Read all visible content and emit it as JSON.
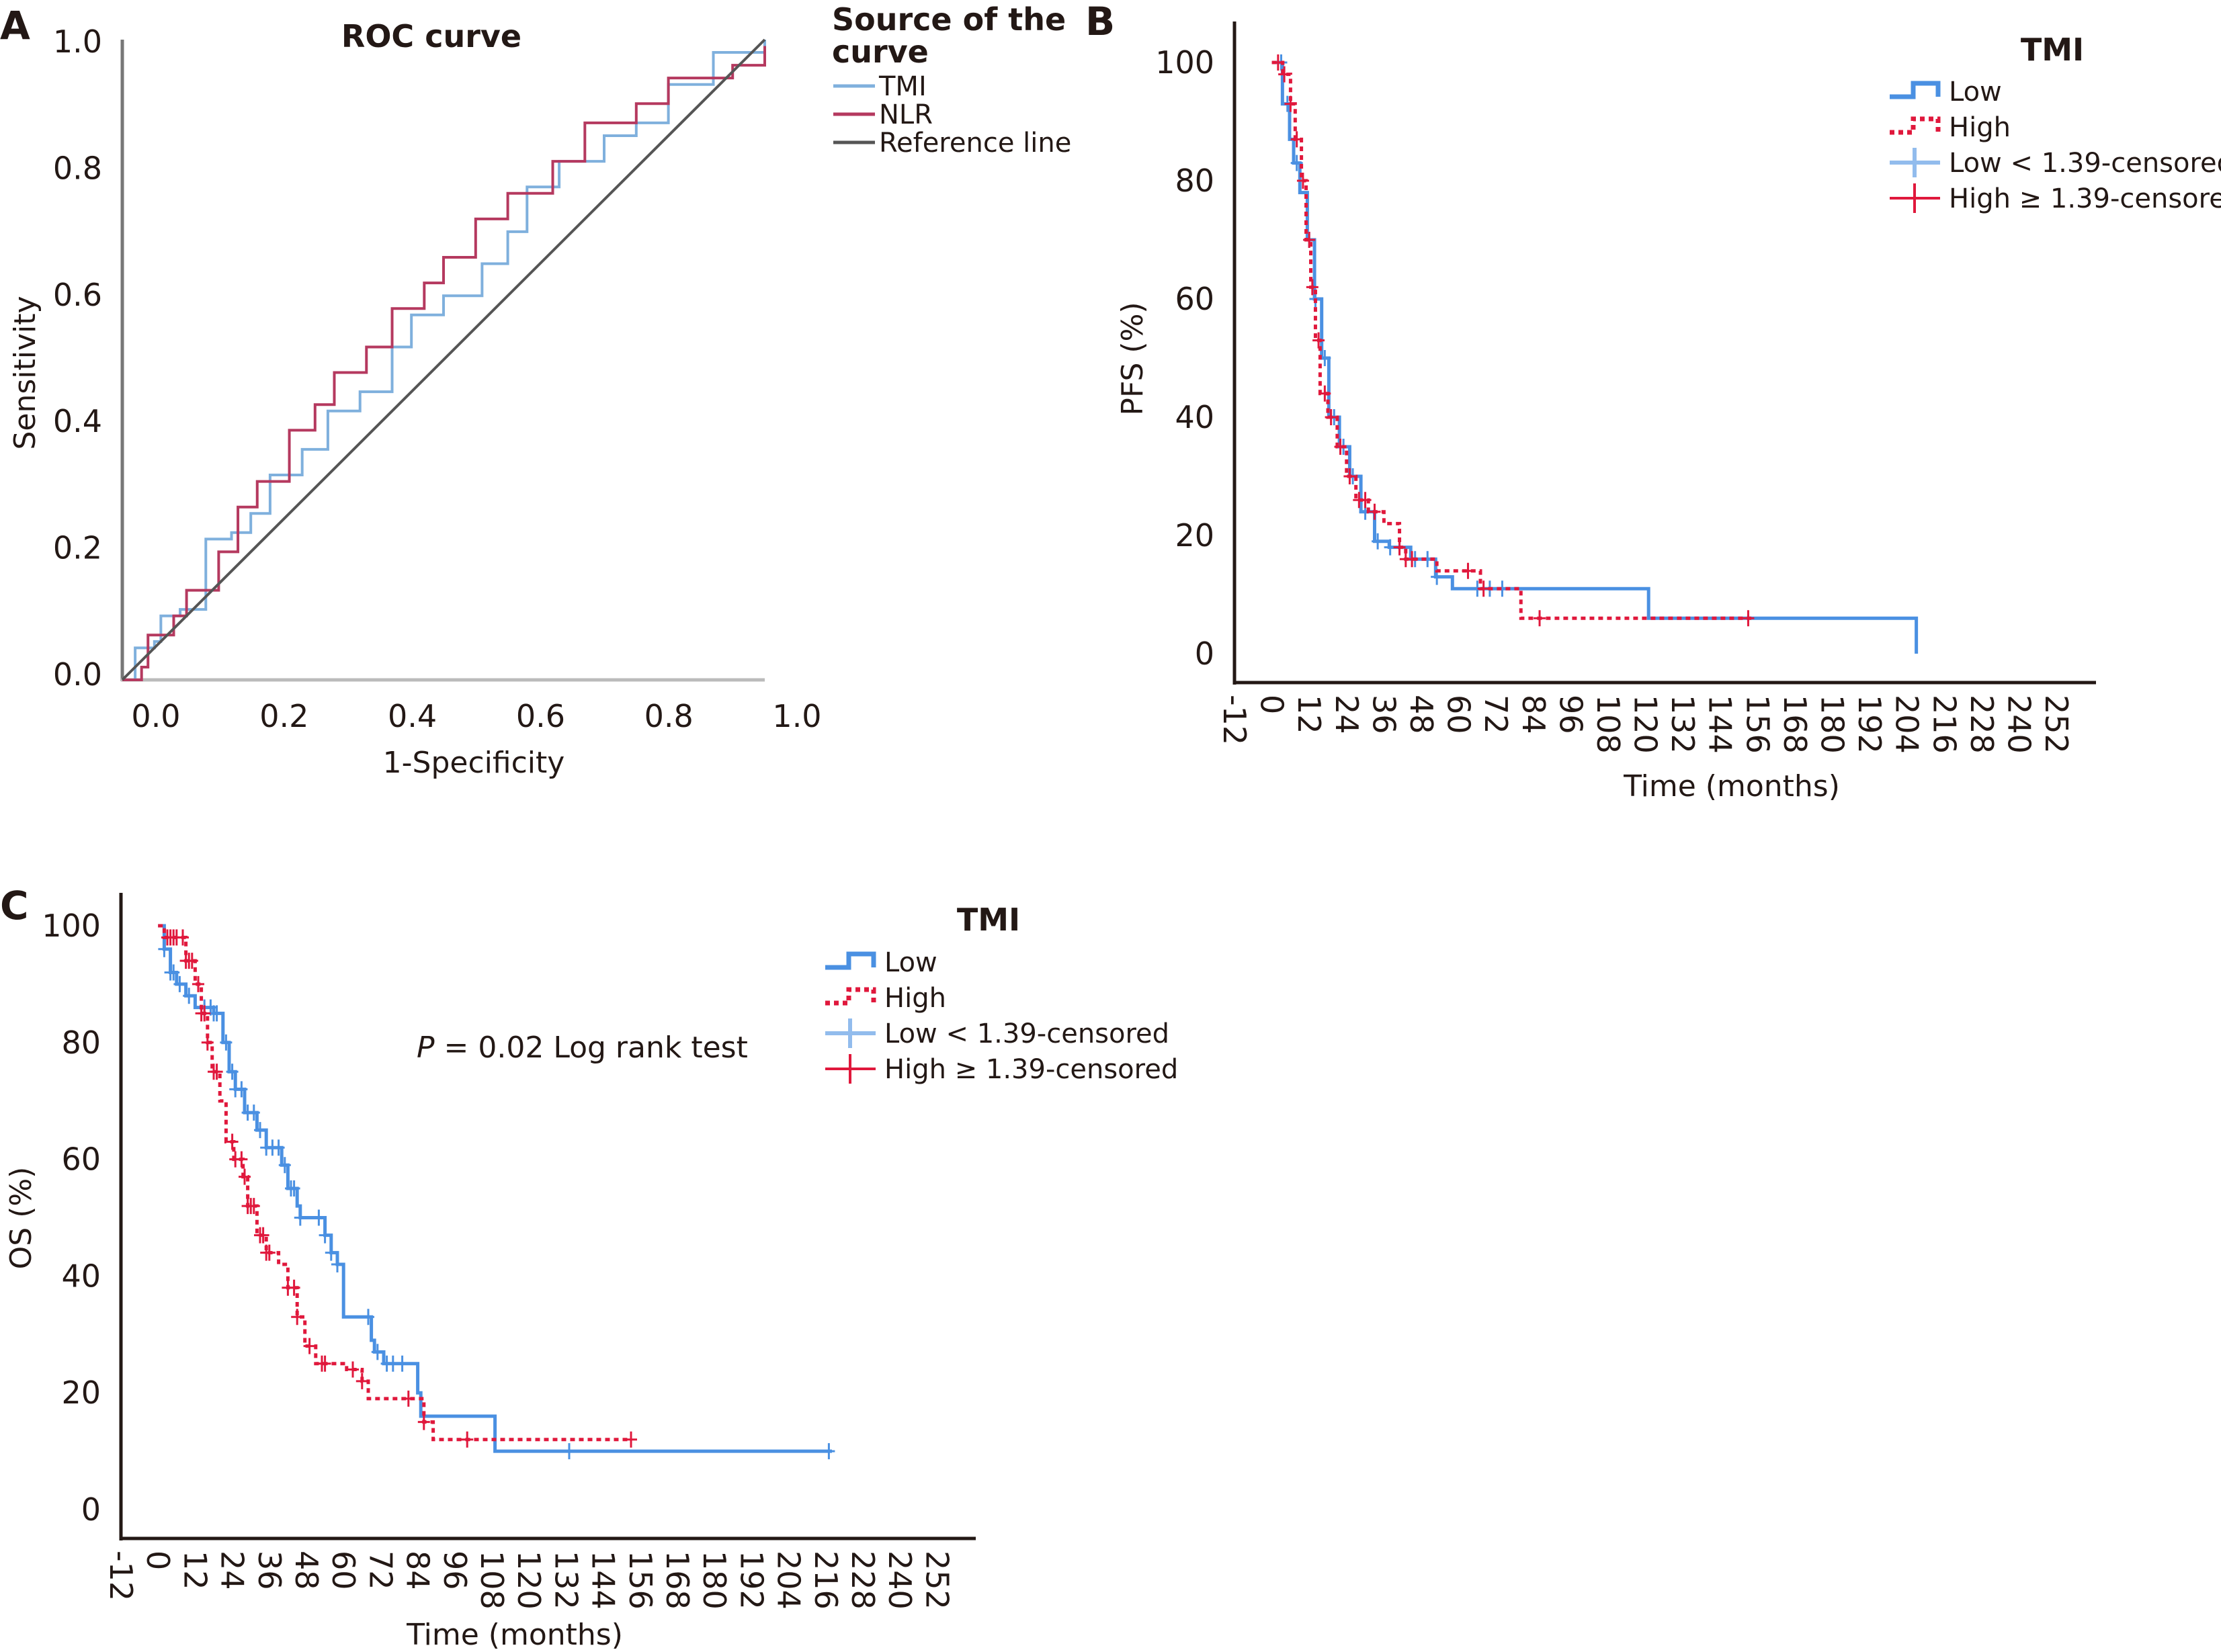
{
  "panels": {
    "a": "A",
    "b": "B",
    "c": "C"
  },
  "chart_data": [
    {
      "type": "line",
      "panel": "A",
      "title": "ROC curve",
      "xlabel": "1-Specificity",
      "ylabel": "Sensitivity",
      "xlim": [
        0,
        1
      ],
      "ylim": [
        0,
        1
      ],
      "xticks": [
        "0.0",
        "0.2",
        "0.4",
        "0.6",
        "0.8",
        "1.0"
      ],
      "yticks": [
        "0.0",
        "0.2",
        "0.4",
        "0.6",
        "0.8",
        "1.0"
      ],
      "grid": false,
      "legend_title": "Source of the curve",
      "legend_title_lines": [
        "Source of the",
        "curve"
      ],
      "legend_position": "right",
      "series": [
        {
          "name": "TMI",
          "color": "#7fb0dd",
          "step": true,
          "x": [
            0,
            0.02,
            0.05,
            0.06,
            0.09,
            0.13,
            0.17,
            0.2,
            0.23,
            0.28,
            0.32,
            0.37,
            0.42,
            0.45,
            0.5,
            0.56,
            0.6,
            0.63,
            0.68,
            0.75,
            0.8,
            0.85,
            0.92,
            1
          ],
          "y": [
            0,
            0.05,
            0.06,
            0.1,
            0.11,
            0.22,
            0.23,
            0.26,
            0.32,
            0.36,
            0.42,
            0.45,
            0.52,
            0.57,
            0.6,
            0.65,
            0.7,
            0.77,
            0.81,
            0.85,
            0.87,
            0.93,
            0.98,
            1
          ]
        },
        {
          "name": "NLR",
          "color": "#b5395f",
          "step": true,
          "x": [
            0,
            0.03,
            0.04,
            0.08,
            0.1,
            0.15,
            0.18,
            0.21,
            0.26,
            0.3,
            0.33,
            0.38,
            0.42,
            0.47,
            0.5,
            0.55,
            0.6,
            0.67,
            0.72,
            0.8,
            0.85,
            0.95,
            1
          ],
          "y": [
            0,
            0.02,
            0.07,
            0.1,
            0.14,
            0.2,
            0.27,
            0.31,
            0.39,
            0.43,
            0.48,
            0.52,
            0.58,
            0.62,
            0.66,
            0.72,
            0.76,
            0.81,
            0.87,
            0.9,
            0.94,
            0.96,
            0.99
          ]
        },
        {
          "name": "Reference line",
          "color": "#555555",
          "step": false,
          "x": [
            0,
            1
          ],
          "y": [
            0,
            1
          ]
        }
      ]
    },
    {
      "type": "line",
      "panel": "B",
      "title": "",
      "xlabel": "Time (months)",
      "ylabel": "PFS (%)",
      "xlim": [
        -12,
        264
      ],
      "ylim": [
        0,
        100
      ],
      "xticks": [
        "-12",
        "0",
        "12",
        "24",
        "36",
        "48",
        "60",
        "72",
        "84",
        "96",
        "108",
        "120",
        "132",
        "144",
        "156",
        "168",
        "180",
        "192",
        "204",
        "216",
        "228",
        "240",
        "252"
      ],
      "yticks": [
        "0",
        "20",
        "40",
        "60",
        "80",
        "100"
      ],
      "grid": false,
      "legend_title": "TMI",
      "legend_position": "top-right",
      "legend": [
        "Low",
        "High",
        "Low < 1.39-censored",
        "High ≥ 1.39-censored"
      ],
      "series": [
        {
          "name": "Low",
          "color": "#4a90e2",
          "dash": false,
          "x": [
            0,
            3.4,
            5.7,
            7,
            9,
            11.4,
            13.7,
            16,
            18.3,
            21.7,
            25,
            28.6,
            33,
            37.7,
            44.6,
            52.6,
            58,
            121,
            207
          ],
          "y": [
            100,
            93,
            87,
            83,
            78,
            70,
            60,
            50,
            40,
            35,
            30,
            24,
            19,
            18,
            16,
            13,
            11,
            6,
            0
          ],
          "censored": [
            3,
            5,
            8,
            12,
            14,
            17,
            20,
            23,
            26,
            30,
            34,
            38,
            41,
            46,
            50,
            53,
            66,
            70,
            74
          ]
        },
        {
          "name": "High",
          "color": "#e0183c",
          "dash": true,
          "x": [
            0,
            3.5,
            6,
            7.5,
            9.5,
            11,
            12.5,
            14,
            15.5,
            18,
            21,
            24,
            27,
            31,
            36,
            41,
            43,
            53,
            67,
            80,
            154
          ],
          "y": [
            100,
            98,
            93,
            87,
            80,
            70,
            62,
            53,
            44,
            40,
            35,
            30,
            26,
            24,
            22,
            18,
            16,
            14,
            11,
            6,
            6
          ],
          "censored": [
            2,
            4,
            6,
            8,
            10,
            12,
            13,
            15,
            17,
            19,
            22,
            25,
            28,
            30,
            33,
            41,
            43,
            45,
            63,
            68,
            86,
            153
          ]
        }
      ]
    },
    {
      "type": "line",
      "panel": "C",
      "title": "",
      "annotation": {
        "italic": "P",
        "text": " = 0.02 Log rank test"
      },
      "xlabel": "Time (months)",
      "ylabel": "OS (%)",
      "xlim": [
        -12,
        264
      ],
      "ylim": [
        0,
        100
      ],
      "xticks": [
        "-12",
        "0",
        "12",
        "24",
        "36",
        "48",
        "60",
        "72",
        "84",
        "96",
        "108",
        "120",
        "132",
        "144",
        "156",
        "168",
        "180",
        "192",
        "204",
        "216",
        "228",
        "240",
        "252"
      ],
      "yticks": [
        "0",
        "20",
        "40",
        "60",
        "80",
        "100"
      ],
      "grid": false,
      "legend_title": "TMI",
      "legend_position": "top-right",
      "legend": [
        "Low",
        "High",
        "Low < 1.39-censored",
        "High ≥ 1.39-censored"
      ],
      "series": [
        {
          "name": "Low",
          "color": "#4a90e2",
          "dash": false,
          "x": [
            0,
            2,
            4,
            6,
            9,
            12,
            18,
            21,
            23,
            25,
            28,
            32,
            35,
            40,
            42,
            45,
            46,
            54,
            56,
            58,
            60,
            69,
            70,
            73,
            84,
            85,
            109,
            218
          ],
          "y": [
            100,
            96,
            92,
            90,
            88,
            86,
            85,
            80,
            75,
            72,
            68,
            65,
            62,
            59,
            55,
            52,
            50,
            47,
            44,
            42,
            33,
            29,
            27,
            25,
            20,
            16,
            10,
            10
          ],
          "censored": [
            2,
            4,
            5,
            7,
            10,
            15,
            17,
            18,
            19,
            22,
            24,
            25,
            27,
            29,
            31,
            33,
            35,
            37,
            39,
            41,
            43,
            44,
            46,
            52,
            54,
            56,
            58,
            68,
            71,
            74,
            76,
            79,
            133,
            217
          ]
        },
        {
          "name": "High",
          "color": "#e0183c",
          "dash": true,
          "x": [
            0,
            2,
            9,
            12,
            14,
            16,
            17.5,
            20,
            22,
            24.5,
            27.5,
            29,
            32,
            35,
            39,
            42,
            45,
            47.5,
            51,
            61,
            66,
            68,
            84,
            86,
            89,
            153
          ],
          "y": [
            100,
            98,
            94,
            90,
            85,
            80,
            75,
            70,
            63,
            60,
            57,
            52,
            47,
            44,
            42,
            38,
            33,
            28,
            25,
            24,
            22,
            19,
            19,
            15,
            12,
            12
          ],
          "censored": [
            3,
            4,
            5,
            6,
            8,
            9,
            10,
            11,
            13,
            14,
            15,
            16,
            18,
            19,
            24,
            25,
            27,
            28,
            29,
            30,
            31,
            33,
            34,
            35,
            36,
            42,
            44,
            45,
            49,
            53,
            54,
            63,
            66,
            81,
            86,
            100,
            153
          ]
        }
      ]
    }
  ]
}
